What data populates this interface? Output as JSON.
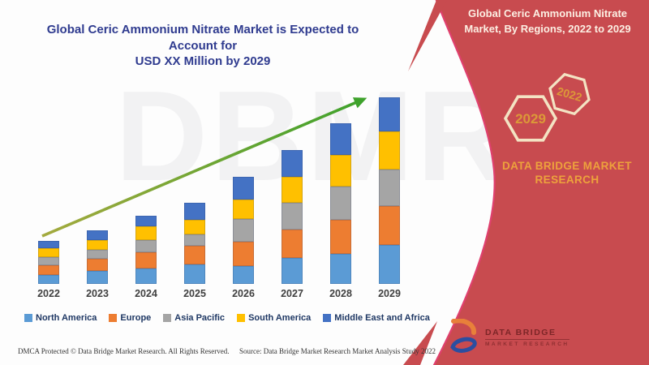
{
  "page": {
    "background": "#fdfdfd"
  },
  "header": {
    "title_line1": "Global Ceric Ammonium Nitrate Market is Expected to Account for",
    "title_line2": "USD XX Million by 2029",
    "title_color": "#2f3b8f"
  },
  "watermark": {
    "text": "DBMR"
  },
  "chart_data": {
    "type": "bar",
    "stacked": true,
    "title": "Global Ceric Ammonium Nitrate Market is Expected to Account for USD XX Million by 2029",
    "categories": [
      "2022",
      "2023",
      "2024",
      "2025",
      "2026",
      "2027",
      "2028",
      "2029"
    ],
    "xlabel": "",
    "ylabel": "",
    "value_axis_visible": false,
    "units": "relative height units (no numeric axis shown; values labeled USD XX Million)",
    "gridlines": false,
    "legend_position": "bottom",
    "tick_color": "#3f3f3f",
    "legend_text_color": "#1f3864",
    "series": [
      {
        "name": "North America",
        "color": "#5B9BD5",
        "values": [
          11,
          16,
          19,
          24,
          22,
          32,
          37,
          48
        ]
      },
      {
        "name": "Europe",
        "color": "#ED7D31",
        "values": [
          12,
          15,
          20,
          23,
          30,
          35,
          42,
          48
        ]
      },
      {
        "name": "Asia Pacific",
        "color": "#A5A5A5",
        "values": [
          10,
          11,
          15,
          14,
          28,
          33,
          41,
          45
        ]
      },
      {
        "name": "South America",
        "color": "#FFC000",
        "values": [
          11,
          12,
          17,
          18,
          24,
          32,
          39,
          47
        ]
      },
      {
        "name": "Middle East and Africa",
        "color": "#4472C4",
        "values": [
          9,
          12,
          13,
          21,
          28,
          33,
          39,
          42
        ]
      }
    ],
    "trend_arrow": {
      "color_start": "#a4aa3e",
      "color_end": "#3ea22c"
    }
  },
  "right_panel": {
    "background": "#c84b4f",
    "accent_line_color": "#e0406e",
    "title_line1": "Global Ceric Ammonium Nitrate",
    "title_line2": "Market, By Regions, 2022 to 2029",
    "hexagons": [
      {
        "label": "2029"
      },
      {
        "label": "2022"
      }
    ],
    "hexagon_stroke_color": "#f3e3c3",
    "hexagon_text_color": "#dc9938",
    "brand_line1": "DATA BRIDGE MARKET",
    "brand_line2": "RESEARCH",
    "brand_color": "#eda23c",
    "logo_text_line1": "DATA BRIDGE",
    "logo_text_line2": "MARKET RESEARCH"
  },
  "footer": {
    "left": "DMCA Protected © Data Bridge Market Research. All Rights Reserved.",
    "right": "Source: Data Bridge Market Research Market Analysis Study 2022"
  }
}
